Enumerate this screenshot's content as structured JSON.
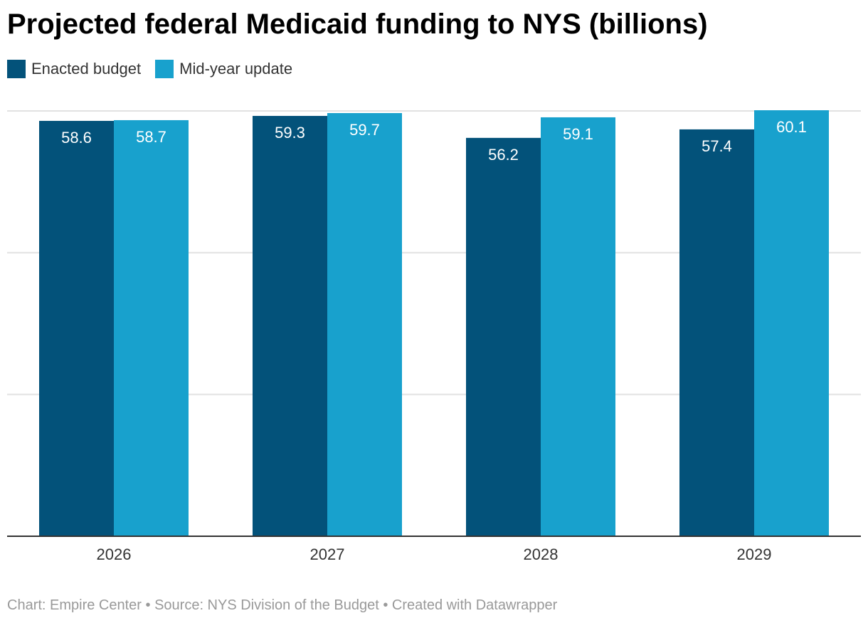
{
  "chart_data": {
    "type": "bar",
    "title": "Projected federal Medicaid funding to NYS (billions)",
    "categories": [
      "2026",
      "2027",
      "2028",
      "2029"
    ],
    "series": [
      {
        "name": "Enacted budget",
        "color": "#03527a",
        "values": [
          58.6,
          59.3,
          56.2,
          57.4
        ]
      },
      {
        "name": "Mid-year update",
        "color": "#18a1cd",
        "values": [
          58.7,
          59.7,
          59.1,
          60.1
        ]
      }
    ],
    "ylim": [
      0,
      60
    ],
    "gridlines": [
      20,
      40,
      60
    ],
    "grid": true,
    "legend": "top-left",
    "xlabel": "",
    "ylabel": ""
  },
  "footer": "Chart: Empire Center • Source: NYS Division of the Budget • Created with Datawrapper"
}
